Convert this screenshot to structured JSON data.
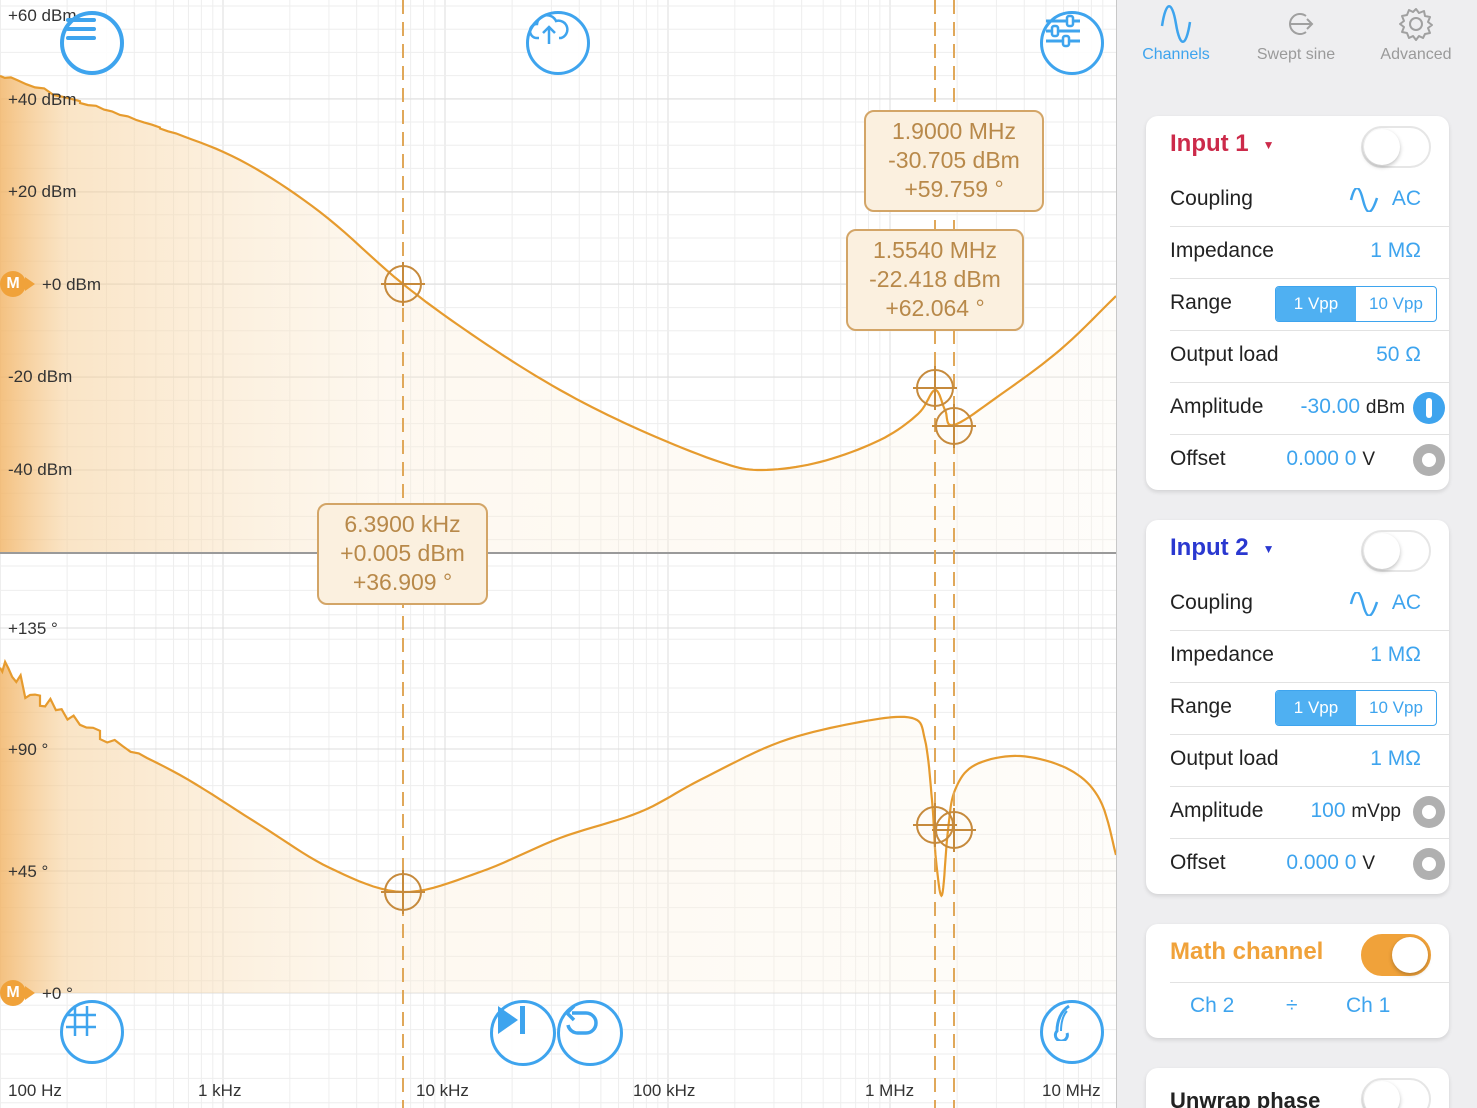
{
  "plot": {
    "magnitude_axis_labels": [
      "+60 dBm",
      "+40 dBm",
      "+20 dBm",
      "+0 dBm",
      "-20 dBm",
      "-40 dBm"
    ],
    "phase_axis_labels": [
      "+135 °",
      "+90 °",
      "+45 °",
      "+0 °"
    ],
    "frequency_axis_labels": [
      "100 Hz",
      "1 kHz",
      "10 kHz",
      "100 kHz",
      "1 MHz",
      "10 MHz"
    ],
    "marker_badge": "M",
    "trace_color": "#e69b2e",
    "cursors": [
      {
        "freq": "6.3900 kHz",
        "mag": "+0.005 dBm",
        "phase": "+36.909 °"
      },
      {
        "freq": "1.5540 MHz",
        "mag": "-22.418 dBm",
        "phase": "+62.064 °"
      },
      {
        "freq": "1.9000 MHz",
        "mag": "-30.705 dBm",
        "phase": "+59.759 °"
      }
    ]
  },
  "toolbar": {
    "menu_icon": "menu-icon",
    "upload_icon": "cloud-upload-icon",
    "settings_icon": "sliders-icon",
    "grid_icon": "grid-icon",
    "play_icon": "step-play-icon",
    "repeat_icon": "repeat-icon",
    "tuning_icon": "tuning-fork-icon"
  },
  "tabs": [
    {
      "label": "Channels",
      "icon": "sine-wave-icon",
      "active": true
    },
    {
      "label": "Swept sine",
      "icon": "swept-sine-icon",
      "active": false
    },
    {
      "label": "Advanced",
      "icon": "gear-icon",
      "active": false
    }
  ],
  "input1": {
    "title": "Input 1",
    "color": "#cc2a4a",
    "enabled": false,
    "coupling_label": "Coupling",
    "coupling_value": "AC",
    "impedance_label": "Impedance",
    "impedance_value": "1 MΩ",
    "range_label": "Range",
    "range_options": [
      "1 Vpp",
      "10 Vpp"
    ],
    "range_selected": "1 Vpp",
    "output_load_label": "Output load",
    "output_load_value": "50 Ω",
    "amplitude_label": "Amplitude",
    "amplitude_value": "-30.00",
    "amplitude_unit": "dBm",
    "offset_label": "Offset",
    "offset_value": "0.000 0",
    "offset_unit": "V"
  },
  "input2": {
    "title": "Input 2",
    "color": "#2a38d0",
    "enabled": false,
    "coupling_label": "Coupling",
    "coupling_value": "AC",
    "impedance_label": "Impedance",
    "impedance_value": "1 MΩ",
    "range_label": "Range",
    "range_options": [
      "1 Vpp",
      "10 Vpp"
    ],
    "range_selected": "1 Vpp",
    "output_load_label": "Output load",
    "output_load_value": "1 MΩ",
    "amplitude_label": "Amplitude",
    "amplitude_value": "100",
    "amplitude_unit": "mVpp",
    "offset_label": "Offset",
    "offset_value": "0.000 0",
    "offset_unit": "V"
  },
  "math": {
    "title": "Math channel",
    "enabled": true,
    "operand_a": "Ch 2",
    "operator": "÷",
    "operand_b": "Ch 1"
  },
  "unwrap": {
    "label": "Unwrap phase",
    "enabled": false
  }
}
